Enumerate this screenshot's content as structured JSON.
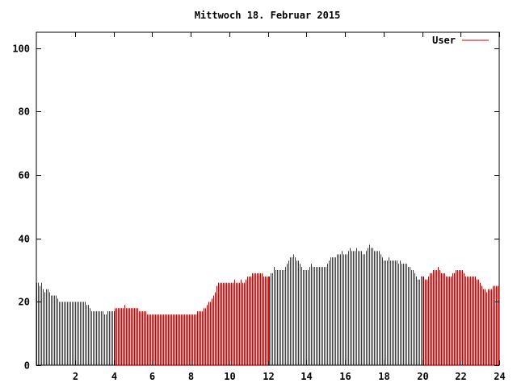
{
  "chart_data": {
    "type": "bar",
    "title": "Mittwoch 18. Februar 2015",
    "xlabel": "",
    "ylabel": "",
    "xlim": [
      0,
      24
    ],
    "ylim": [
      0,
      105
    ],
    "x_ticks": [
      2,
      4,
      6,
      8,
      10,
      12,
      14,
      16,
      18,
      20,
      22,
      24
    ],
    "y_ticks": [
      0,
      20,
      40,
      60,
      80,
      100
    ],
    "grid": false,
    "legend": "top-right",
    "series": [
      {
        "name": "User",
        "color": "#cc0000",
        "interval_minutes": 5,
        "values": [
          26,
          26,
          25,
          26,
          24,
          23,
          24,
          24,
          23,
          22,
          22,
          22,
          22,
          21,
          20,
          20,
          20,
          20,
          20,
          20,
          20,
          20,
          20,
          20,
          20,
          20,
          20,
          20,
          20,
          20,
          20,
          19,
          19,
          18,
          17,
          17,
          17,
          17,
          17,
          17,
          17,
          17,
          16,
          16,
          17,
          17,
          17,
          17,
          17,
          18,
          18,
          18,
          18,
          18,
          18,
          19,
          18,
          18,
          18,
          18,
          18,
          18,
          18,
          18,
          17,
          17,
          17,
          17,
          17,
          16,
          16,
          16,
          16,
          16,
          16,
          16,
          16,
          16,
          16,
          16,
          16,
          16,
          16,
          16,
          16,
          16,
          16,
          16,
          16,
          16,
          16,
          16,
          16,
          16,
          16,
          16,
          16,
          16,
          16,
          16,
          17,
          17,
          17,
          17,
          18,
          18,
          19,
          20,
          20,
          21,
          22,
          23,
          25,
          26,
          26,
          26,
          26,
          26,
          26,
          26,
          26,
          26,
          26,
          27,
          26,
          26,
          26,
          27,
          26,
          26,
          27,
          28,
          28,
          28,
          29,
          29,
          29,
          29,
          29,
          29,
          29,
          28,
          28,
          28,
          28,
          28,
          29,
          29,
          31,
          30,
          30,
          30,
          30,
          30,
          30,
          31,
          32,
          33,
          34,
          34,
          35,
          34,
          33,
          33,
          32,
          31,
          30,
          30,
          30,
          30,
          31,
          32,
          31,
          31,
          31,
          31,
          31,
          31,
          31,
          31,
          31,
          32,
          33,
          34,
          34,
          34,
          34,
          35,
          35,
          35,
          36,
          35,
          35,
          35,
          36,
          37,
          36,
          36,
          36,
          37,
          36,
          36,
          36,
          35,
          35,
          36,
          37,
          38,
          37,
          37,
          36,
          36,
          36,
          36,
          35,
          34,
          33,
          33,
          33,
          34,
          33,
          33,
          33,
          33,
          33,
          32,
          33,
          32,
          32,
          32,
          32,
          31,
          31,
          30,
          30,
          29,
          28,
          27,
          27,
          28,
          28,
          28,
          27,
          27,
          28,
          29,
          29,
          30,
          30,
          30,
          31,
          30,
          29,
          29,
          29,
          28,
          28,
          28,
          28,
          29,
          29,
          30,
          30,
          30,
          30,
          30,
          29,
          28,
          28,
          28,
          28,
          28,
          28,
          28,
          27,
          27,
          26,
          25,
          24,
          24,
          23,
          24,
          24,
          24,
          25,
          25,
          25,
          25
        ]
      }
    ]
  }
}
